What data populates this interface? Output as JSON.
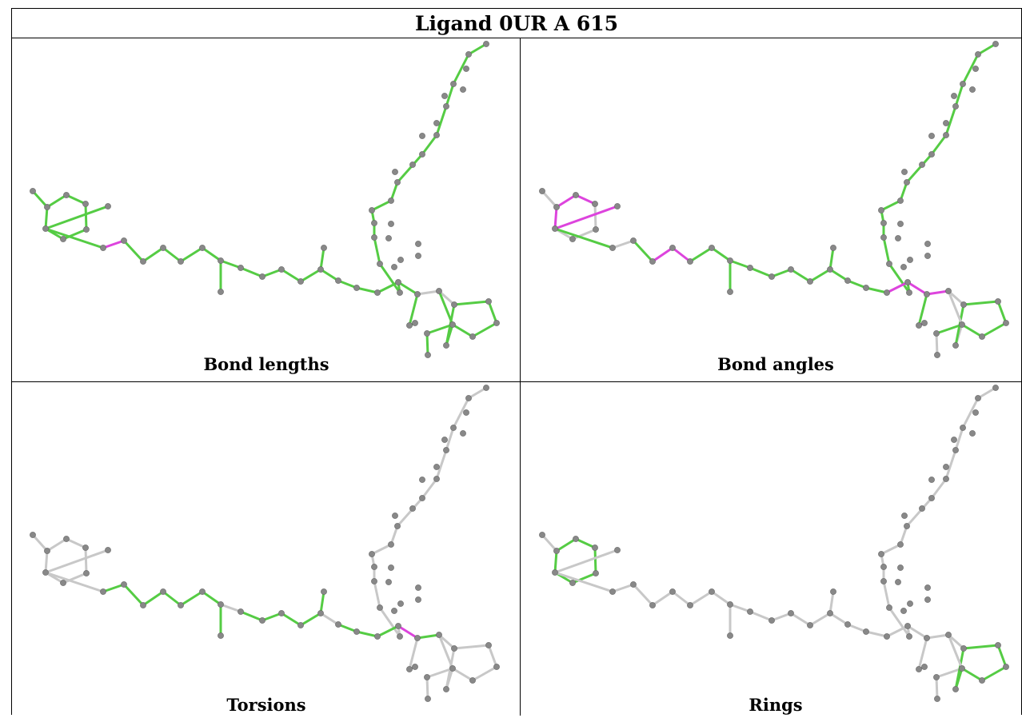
{
  "title": "Ligand 0UR A 615",
  "colors": {
    "ok": "#55cc44",
    "outlier": "#dd44dd",
    "none": "#c8c8c8",
    "atom": "#888888"
  },
  "panels": [
    {
      "caption": "Bond lengths",
      "default": "ok",
      "outlier_bonds": [
        [
          19,
          20
        ],
        [
          20,
          21
        ]
      ],
      "none_bonds": [
        [
          18,
          19
        ],
        [
          38,
          39
        ],
        [
          39,
          40
        ]
      ]
    },
    {
      "caption": "Bond angles",
      "default": "ok",
      "outlier_bonds": [
        [
          13,
          14
        ],
        [
          14,
          19
        ],
        [
          13,
          17
        ],
        [
          17,
          18
        ],
        [
          18,
          13
        ],
        [
          19,
          20
        ],
        [
          22,
          23
        ],
        [
          23,
          24
        ],
        [
          36,
          37
        ],
        [
          37,
          38
        ],
        [
          38,
          39
        ],
        [
          37,
          64
        ],
        [
          48,
          49
        ]
      ],
      "none_bonds": [
        [
          20,
          21
        ],
        [
          39,
          40
        ],
        [
          39,
          44
        ],
        [
          12,
          13
        ],
        [
          15,
          16
        ],
        [
          14,
          15
        ],
        [
          17,
          16
        ],
        [
          50,
          51
        ],
        [
          49,
          44
        ],
        [
          44,
          45
        ],
        [
          45,
          46
        ],
        [
          46,
          47
        ],
        [
          47,
          48
        ]
      ]
    },
    {
      "caption": "Torsions",
      "default": "none",
      "outlier_bonds": [
        [
          56,
          57
        ],
        [
          59,
          60
        ],
        [
          61,
          62
        ],
        [
          37,
          38
        ]
      ],
      "ok_bonds": [
        [
          19,
          20
        ],
        [
          20,
          21
        ],
        [
          21,
          22
        ],
        [
          22,
          23
        ],
        [
          23,
          24
        ],
        [
          24,
          25
        ],
        [
          25,
          26
        ],
        [
          26,
          27
        ],
        [
          27,
          28
        ],
        [
          28,
          29
        ],
        [
          29,
          30
        ],
        [
          30,
          31
        ],
        [
          31,
          32
        ],
        [
          32,
          33
        ],
        [
          33,
          34
        ],
        [
          34,
          35
        ],
        [
          35,
          36
        ],
        [
          36,
          37
        ],
        [
          38,
          39
        ],
        [
          37,
          52
        ],
        [
          52,
          53
        ],
        [
          53,
          54
        ],
        [
          54,
          55
        ],
        [
          55,
          56
        ],
        [
          57,
          58
        ],
        [
          58,
          59
        ],
        [
          60,
          61
        ],
        [
          62,
          63
        ]
      ]
    },
    {
      "caption": "Rings",
      "default": "none",
      "ok_bonds": [
        [
          14,
          15
        ],
        [
          15,
          16
        ],
        [
          16,
          17
        ],
        [
          17,
          18
        ],
        [
          18,
          13
        ],
        [
          13,
          14
        ],
        [
          40,
          41
        ],
        [
          41,
          42
        ],
        [
          42,
          43
        ],
        [
          43,
          44
        ],
        [
          44,
          45
        ],
        [
          45,
          40
        ]
      ],
      "outlier_bonds": []
    }
  ]
}
